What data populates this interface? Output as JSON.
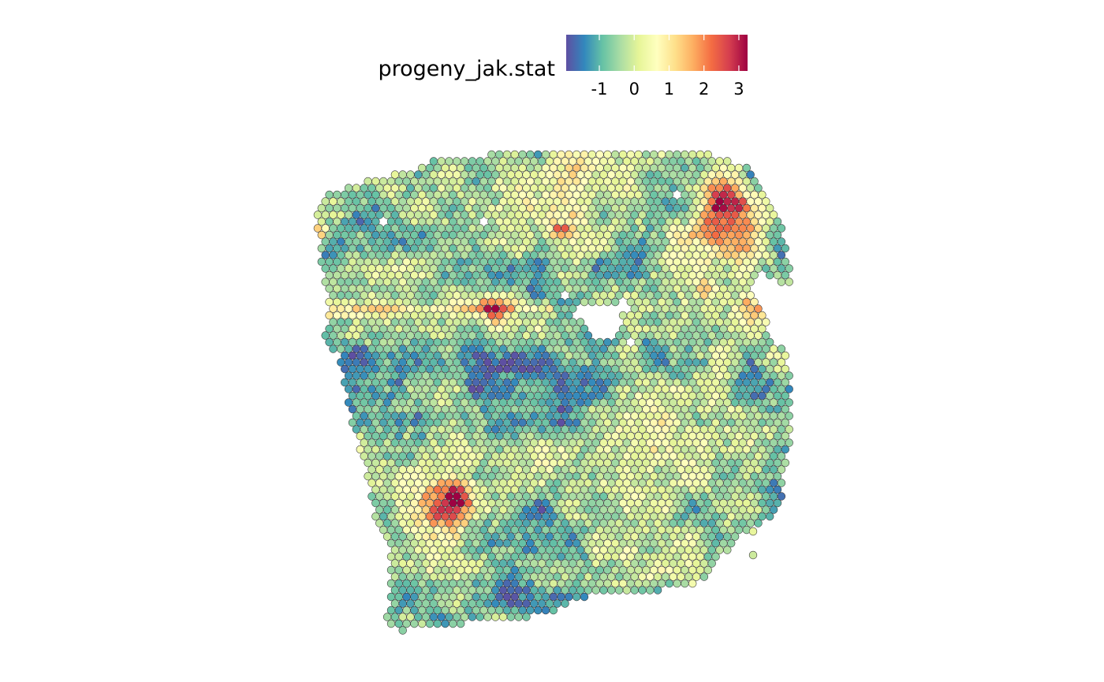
{
  "chart_data": {
    "type": "scatter",
    "title": "",
    "xlabel": "",
    "ylabel": "",
    "legend": {
      "title": "progeny_jak.stat",
      "placement": "top",
      "range": [
        -1.95,
        3.25
      ],
      "ticks": [
        -1,
        0,
        1,
        2,
        3
      ],
      "tick_labels": [
        "-1",
        "0",
        "1",
        "2",
        "3"
      ],
      "palette": [
        "#5E4FA2",
        "#3288BD",
        "#66C2A5",
        "#ABDDA4",
        "#E6F598",
        "#FFFFBF",
        "#FEE08B",
        "#FDAE61",
        "#F46D43",
        "#D53E4F",
        "#9E0142"
      ]
    },
    "spot_style": {
      "stroke": "#3a3a3a",
      "shape": "circle"
    },
    "grid": false,
    "notes": "Spatial transcriptomics spot map; each hex-packed spot colored by progeny JAK-STAT pathway activity score. Values approximate."
  }
}
